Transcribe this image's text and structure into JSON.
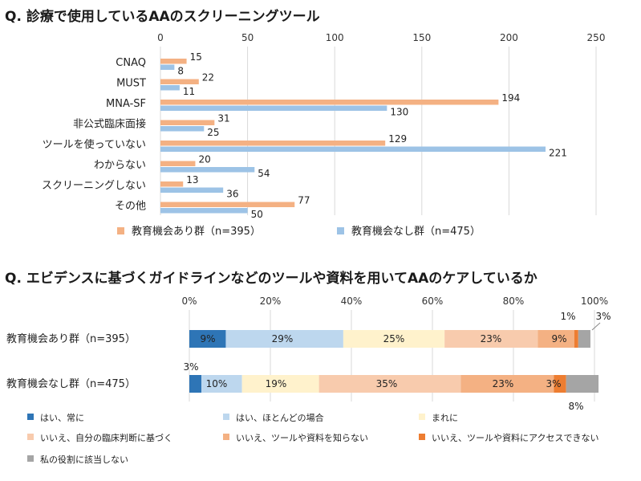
{
  "chart_data": [
    {
      "type": "bar",
      "orientation": "horizontal",
      "title": "Q. 診療で使用しているAAのスクリーニングツール",
      "categories": [
        "CNAQ",
        "MUST",
        "MNA-SF",
        "非公式臨床面接",
        "ツールを使っていない",
        "わからない",
        "スクリーニングしない",
        "その他"
      ],
      "series": [
        {
          "name": "教育機会あり群（n=395）",
          "color": "#f4b183",
          "values": [
            15,
            22,
            194,
            31,
            129,
            20,
            13,
            77
          ]
        },
        {
          "name": "教育機会なし群（n=475）",
          "color": "#9dc3e6",
          "values": [
            8,
            11,
            130,
            25,
            221,
            54,
            36,
            50
          ]
        }
      ],
      "xlim": [
        0,
        250
      ],
      "xticks": [
        0,
        50,
        100,
        150,
        200,
        250
      ],
      "xlabel": "",
      "ylabel": "",
      "legend_position": "bottom",
      "data_labels": true
    },
    {
      "type": "bar",
      "orientation": "horizontal",
      "stacked": "percent",
      "title": "Q. エビデンスに基づくガイドラインなどのツールや資料を用いてAAのケアしているか",
      "categories": [
        "教育機会あり群（n=395）",
        "教育機会なし群（n=475）"
      ],
      "series": [
        {
          "name": "はい、常に",
          "color": "#2e75b6",
          "values": [
            9,
            3
          ],
          "labels": [
            "9%",
            "3%"
          ]
        },
        {
          "name": "はい、ほとんどの場合",
          "color": "#bdd7ee",
          "values": [
            29,
            10
          ],
          "labels": [
            "29%",
            "10%"
          ]
        },
        {
          "name": "まれに",
          "color": "#fff2cc",
          "values": [
            25,
            19
          ],
          "labels": [
            "25%",
            "19%"
          ]
        },
        {
          "name": "いいえ、自分の臨床判断に基づく",
          "color": "#f8cbad",
          "values": [
            23,
            35
          ],
          "labels": [
            "23%",
            "35%"
          ]
        },
        {
          "name": "いいえ、ツールや資料を知らない",
          "color": "#f4b183",
          "values": [
            9,
            23
          ],
          "labels": [
            "9%",
            "23%"
          ]
        },
        {
          "name": "いいえ、ツールや資料にアクセスできない",
          "color": "#ed7d31",
          "values": [
            1,
            3
          ],
          "labels": [
            "1%",
            "3%"
          ]
        },
        {
          "name": "私の役割に該当しない",
          "color": "#a5a5a5",
          "values": [
            3,
            8
          ],
          "labels": [
            "3%",
            "8%"
          ]
        }
      ],
      "xlim": [
        0,
        100
      ],
      "xticks": [
        "0%",
        "20%",
        "40%",
        "60%",
        "80%",
        "100%"
      ],
      "xlabel": "",
      "ylabel": "",
      "legend_position": "bottom",
      "data_labels": true
    }
  ]
}
